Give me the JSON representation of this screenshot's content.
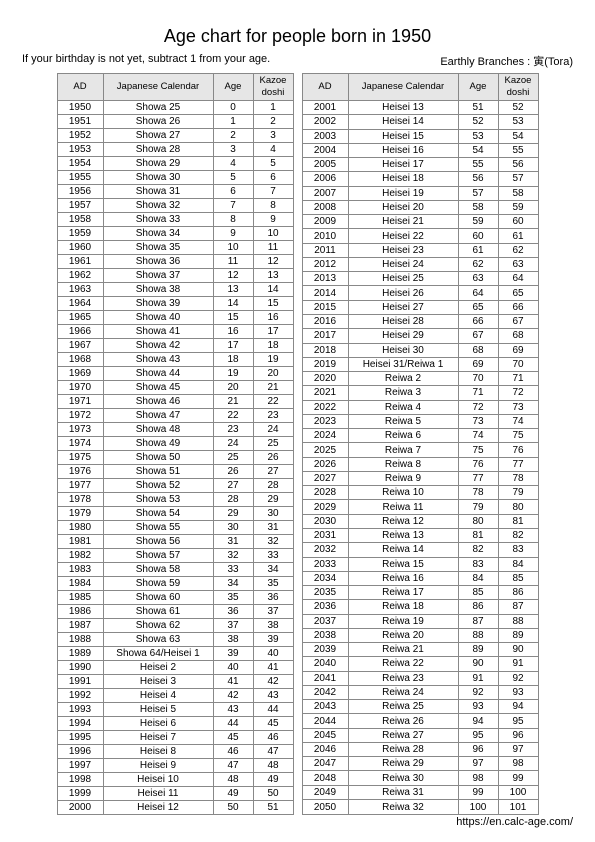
{
  "title": "Age chart for people born in 1950",
  "subtitle_left": "If your birthday is not yet, subtract 1 from your age.",
  "subtitle_right": "Earthly Branches : 寅(Tora)",
  "footer": "https://en.calc-age.com/",
  "headers": {
    "ad": "AD",
    "jc": "Japanese Calendar",
    "age": "Age",
    "kz": "Kazoe\ndoshi"
  },
  "rows_left": [
    {
      "ad": "1950",
      "jc": "Showa 25",
      "age": "0",
      "kz": "1"
    },
    {
      "ad": "1951",
      "jc": "Showa 26",
      "age": "1",
      "kz": "2"
    },
    {
      "ad": "1952",
      "jc": "Showa 27",
      "age": "2",
      "kz": "3"
    },
    {
      "ad": "1953",
      "jc": "Showa 28",
      "age": "3",
      "kz": "4"
    },
    {
      "ad": "1954",
      "jc": "Showa 29",
      "age": "4",
      "kz": "5"
    },
    {
      "ad": "1955",
      "jc": "Showa 30",
      "age": "5",
      "kz": "6"
    },
    {
      "ad": "1956",
      "jc": "Showa 31",
      "age": "6",
      "kz": "7"
    },
    {
      "ad": "1957",
      "jc": "Showa 32",
      "age": "7",
      "kz": "8"
    },
    {
      "ad": "1958",
      "jc": "Showa 33",
      "age": "8",
      "kz": "9"
    },
    {
      "ad": "1959",
      "jc": "Showa 34",
      "age": "9",
      "kz": "10"
    },
    {
      "ad": "1960",
      "jc": "Showa 35",
      "age": "10",
      "kz": "11"
    },
    {
      "ad": "1961",
      "jc": "Showa 36",
      "age": "11",
      "kz": "12"
    },
    {
      "ad": "1962",
      "jc": "Showa 37",
      "age": "12",
      "kz": "13"
    },
    {
      "ad": "1963",
      "jc": "Showa 38",
      "age": "13",
      "kz": "14"
    },
    {
      "ad": "1964",
      "jc": "Showa 39",
      "age": "14",
      "kz": "15"
    },
    {
      "ad": "1965",
      "jc": "Showa 40",
      "age": "15",
      "kz": "16"
    },
    {
      "ad": "1966",
      "jc": "Showa 41",
      "age": "16",
      "kz": "17"
    },
    {
      "ad": "1967",
      "jc": "Showa 42",
      "age": "17",
      "kz": "18"
    },
    {
      "ad": "1968",
      "jc": "Showa 43",
      "age": "18",
      "kz": "19"
    },
    {
      "ad": "1969",
      "jc": "Showa 44",
      "age": "19",
      "kz": "20"
    },
    {
      "ad": "1970",
      "jc": "Showa 45",
      "age": "20",
      "kz": "21"
    },
    {
      "ad": "1971",
      "jc": "Showa 46",
      "age": "21",
      "kz": "22"
    },
    {
      "ad": "1972",
      "jc": "Showa 47",
      "age": "22",
      "kz": "23"
    },
    {
      "ad": "1973",
      "jc": "Showa 48",
      "age": "23",
      "kz": "24"
    },
    {
      "ad": "1974",
      "jc": "Showa 49",
      "age": "24",
      "kz": "25"
    },
    {
      "ad": "1975",
      "jc": "Showa 50",
      "age": "25",
      "kz": "26"
    },
    {
      "ad": "1976",
      "jc": "Showa 51",
      "age": "26",
      "kz": "27"
    },
    {
      "ad": "1977",
      "jc": "Showa 52",
      "age": "27",
      "kz": "28"
    },
    {
      "ad": "1978",
      "jc": "Showa 53",
      "age": "28",
      "kz": "29"
    },
    {
      "ad": "1979",
      "jc": "Showa 54",
      "age": "29",
      "kz": "30"
    },
    {
      "ad": "1980",
      "jc": "Showa 55",
      "age": "30",
      "kz": "31"
    },
    {
      "ad": "1981",
      "jc": "Showa 56",
      "age": "31",
      "kz": "32"
    },
    {
      "ad": "1982",
      "jc": "Showa 57",
      "age": "32",
      "kz": "33"
    },
    {
      "ad": "1983",
      "jc": "Showa 58",
      "age": "33",
      "kz": "34"
    },
    {
      "ad": "1984",
      "jc": "Showa 59",
      "age": "34",
      "kz": "35"
    },
    {
      "ad": "1985",
      "jc": "Showa 60",
      "age": "35",
      "kz": "36"
    },
    {
      "ad": "1986",
      "jc": "Showa 61",
      "age": "36",
      "kz": "37"
    },
    {
      "ad": "1987",
      "jc": "Showa 62",
      "age": "37",
      "kz": "38"
    },
    {
      "ad": "1988",
      "jc": "Showa 63",
      "age": "38",
      "kz": "39"
    },
    {
      "ad": "1989",
      "jc": "Showa 64/Heisei 1",
      "age": "39",
      "kz": "40"
    },
    {
      "ad": "1990",
      "jc": "Heisei 2",
      "age": "40",
      "kz": "41"
    },
    {
      "ad": "1991",
      "jc": "Heisei 3",
      "age": "41",
      "kz": "42"
    },
    {
      "ad": "1992",
      "jc": "Heisei 4",
      "age": "42",
      "kz": "43"
    },
    {
      "ad": "1993",
      "jc": "Heisei 5",
      "age": "43",
      "kz": "44"
    },
    {
      "ad": "1994",
      "jc": "Heisei 6",
      "age": "44",
      "kz": "45"
    },
    {
      "ad": "1995",
      "jc": "Heisei 7",
      "age": "45",
      "kz": "46"
    },
    {
      "ad": "1996",
      "jc": "Heisei 8",
      "age": "46",
      "kz": "47"
    },
    {
      "ad": "1997",
      "jc": "Heisei 9",
      "age": "47",
      "kz": "48"
    },
    {
      "ad": "1998",
      "jc": "Heisei 10",
      "age": "48",
      "kz": "49"
    },
    {
      "ad": "1999",
      "jc": "Heisei 11",
      "age": "49",
      "kz": "50"
    },
    {
      "ad": "2000",
      "jc": "Heisei 12",
      "age": "50",
      "kz": "51"
    }
  ],
  "rows_right": [
    {
      "ad": "2001",
      "jc": "Heisei 13",
      "age": "51",
      "kz": "52"
    },
    {
      "ad": "2002",
      "jc": "Heisei 14",
      "age": "52",
      "kz": "53"
    },
    {
      "ad": "2003",
      "jc": "Heisei 15",
      "age": "53",
      "kz": "54"
    },
    {
      "ad": "2004",
      "jc": "Heisei 16",
      "age": "54",
      "kz": "55"
    },
    {
      "ad": "2005",
      "jc": "Heisei 17",
      "age": "55",
      "kz": "56"
    },
    {
      "ad": "2006",
      "jc": "Heisei 18",
      "age": "56",
      "kz": "57"
    },
    {
      "ad": "2007",
      "jc": "Heisei 19",
      "age": "57",
      "kz": "58"
    },
    {
      "ad": "2008",
      "jc": "Heisei 20",
      "age": "58",
      "kz": "59"
    },
    {
      "ad": "2009",
      "jc": "Heisei 21",
      "age": "59",
      "kz": "60"
    },
    {
      "ad": "2010",
      "jc": "Heisei 22",
      "age": "60",
      "kz": "61"
    },
    {
      "ad": "2011",
      "jc": "Heisei 23",
      "age": "61",
      "kz": "62"
    },
    {
      "ad": "2012",
      "jc": "Heisei 24",
      "age": "62",
      "kz": "63"
    },
    {
      "ad": "2013",
      "jc": "Heisei 25",
      "age": "63",
      "kz": "64"
    },
    {
      "ad": "2014",
      "jc": "Heisei 26",
      "age": "64",
      "kz": "65"
    },
    {
      "ad": "2015",
      "jc": "Heisei 27",
      "age": "65",
      "kz": "66"
    },
    {
      "ad": "2016",
      "jc": "Heisei 28",
      "age": "66",
      "kz": "67"
    },
    {
      "ad": "2017",
      "jc": "Heisei 29",
      "age": "67",
      "kz": "68"
    },
    {
      "ad": "2018",
      "jc": "Heisei 30",
      "age": "68",
      "kz": "69"
    },
    {
      "ad": "2019",
      "jc": "Heisei 31/Reiwa 1",
      "age": "69",
      "kz": "70"
    },
    {
      "ad": "2020",
      "jc": "Reiwa 2",
      "age": "70",
      "kz": "71"
    },
    {
      "ad": "2021",
      "jc": "Reiwa 3",
      "age": "71",
      "kz": "72"
    },
    {
      "ad": "2022",
      "jc": "Reiwa 4",
      "age": "72",
      "kz": "73"
    },
    {
      "ad": "2023",
      "jc": "Reiwa 5",
      "age": "73",
      "kz": "74"
    },
    {
      "ad": "2024",
      "jc": "Reiwa 6",
      "age": "74",
      "kz": "75"
    },
    {
      "ad": "2025",
      "jc": "Reiwa 7",
      "age": "75",
      "kz": "76"
    },
    {
      "ad": "2026",
      "jc": "Reiwa 8",
      "age": "76",
      "kz": "77"
    },
    {
      "ad": "2027",
      "jc": "Reiwa 9",
      "age": "77",
      "kz": "78"
    },
    {
      "ad": "2028",
      "jc": "Reiwa 10",
      "age": "78",
      "kz": "79"
    },
    {
      "ad": "2029",
      "jc": "Reiwa 11",
      "age": "79",
      "kz": "80"
    },
    {
      "ad": "2030",
      "jc": "Reiwa 12",
      "age": "80",
      "kz": "81"
    },
    {
      "ad": "2031",
      "jc": "Reiwa 13",
      "age": "81",
      "kz": "82"
    },
    {
      "ad": "2032",
      "jc": "Reiwa 14",
      "age": "82",
      "kz": "83"
    },
    {
      "ad": "2033",
      "jc": "Reiwa 15",
      "age": "83",
      "kz": "84"
    },
    {
      "ad": "2034",
      "jc": "Reiwa 16",
      "age": "84",
      "kz": "85"
    },
    {
      "ad": "2035",
      "jc": "Reiwa 17",
      "age": "85",
      "kz": "86"
    },
    {
      "ad": "2036",
      "jc": "Reiwa 18",
      "age": "86",
      "kz": "87"
    },
    {
      "ad": "2037",
      "jc": "Reiwa 19",
      "age": "87",
      "kz": "88"
    },
    {
      "ad": "2038",
      "jc": "Reiwa 20",
      "age": "88",
      "kz": "89"
    },
    {
      "ad": "2039",
      "jc": "Reiwa 21",
      "age": "89",
      "kz": "90"
    },
    {
      "ad": "2040",
      "jc": "Reiwa 22",
      "age": "90",
      "kz": "91"
    },
    {
      "ad": "2041",
      "jc": "Reiwa 23",
      "age": "91",
      "kz": "92"
    },
    {
      "ad": "2042",
      "jc": "Reiwa 24",
      "age": "92",
      "kz": "93"
    },
    {
      "ad": "2043",
      "jc": "Reiwa 25",
      "age": "93",
      "kz": "94"
    },
    {
      "ad": "2044",
      "jc": "Reiwa 26",
      "age": "94",
      "kz": "95"
    },
    {
      "ad": "2045",
      "jc": "Reiwa 27",
      "age": "95",
      "kz": "96"
    },
    {
      "ad": "2046",
      "jc": "Reiwa 28",
      "age": "96",
      "kz": "97"
    },
    {
      "ad": "2047",
      "jc": "Reiwa 29",
      "age": "97",
      "kz": "98"
    },
    {
      "ad": "2048",
      "jc": "Reiwa 30",
      "age": "98",
      "kz": "99"
    },
    {
      "ad": "2049",
      "jc": "Reiwa 31",
      "age": "99",
      "kz": "100"
    },
    {
      "ad": "2050",
      "jc": "Reiwa 32",
      "age": "100",
      "kz": "101"
    }
  ]
}
